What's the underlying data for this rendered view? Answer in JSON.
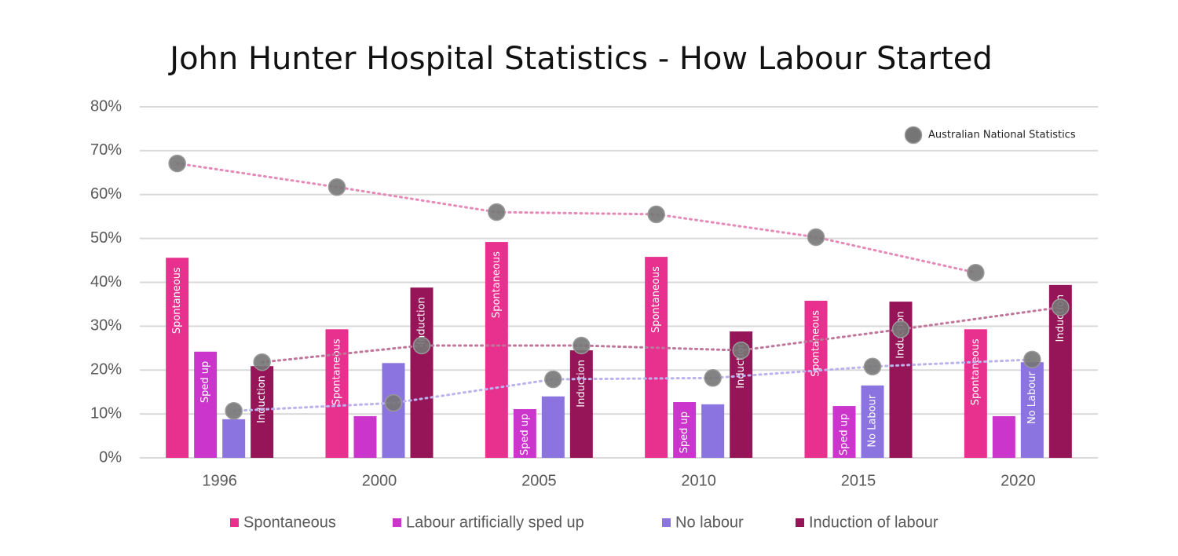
{
  "chart_data": {
    "type": "bar",
    "title": "John Hunter Hospital Statistics  - How Labour Started",
    "categories": [
      "1996",
      "2000",
      "2005",
      "2010",
      "2015",
      "2020"
    ],
    "ylim": [
      0,
      80
    ],
    "yticks": [
      {
        "value": 0,
        "label": "0%"
      },
      {
        "value": 10,
        "label": "10%"
      },
      {
        "value": 20,
        "label": "20%"
      },
      {
        "value": 30,
        "label": "30%"
      },
      {
        "value": 40,
        "label": "40%"
      },
      {
        "value": 50,
        "label": "50%"
      },
      {
        "value": 60,
        "label": "60%"
      },
      {
        "value": 70,
        "label": "70%"
      },
      {
        "value": 80,
        "label": "80%"
      }
    ],
    "grid": true,
    "national_label": "Australian National Statistics",
    "national_color": "#757575",
    "series": [
      {
        "name": "Spontaneous",
        "color": "#e8308f",
        "values": [
          45.6,
          29.3,
          49.2,
          45.8,
          35.8,
          29.3
        ],
        "bar_labels": [
          "Spontaneous",
          "Spontaneous",
          "Spontaneous",
          "Spontaneous",
          "Spontaneous",
          "Spontaneous"
        ],
        "national_values": [
          67.1,
          61.7,
          56.0,
          55.5,
          50.3,
          42.2
        ],
        "national_line_color": "#e58ab8"
      },
      {
        "name": "Labour artificially sped up",
        "color": "#cc35cc",
        "values": [
          24.2,
          9.5,
          11.1,
          12.7,
          11.8,
          9.5
        ],
        "bar_labels": [
          "Sped up",
          null,
          "Sped up",
          "Sped up",
          "Sped up",
          null
        ]
      },
      {
        "name": "No labour",
        "color": "#8b74e0",
        "values": [
          8.8,
          21.6,
          14.0,
          12.2,
          16.5,
          21.8
        ],
        "bar_labels": [
          null,
          null,
          null,
          null,
          "No Labour",
          "No Labour"
        ],
        "national_values": [
          10.7,
          12.5,
          17.9,
          18.2,
          20.8,
          22.4
        ],
        "national_line_color": "#bcb3ee"
      },
      {
        "name": "Induction of labour",
        "color": "#951558",
        "values": [
          20.9,
          38.8,
          24.5,
          28.8,
          35.6,
          39.4
        ],
        "bar_labels": [
          "Induction",
          "Induction",
          "Induction",
          "Induction",
          "Induction",
          "Induction"
        ],
        "national_values": [
          21.8,
          25.6,
          25.6,
          24.5,
          29.3,
          34.3
        ],
        "national_line_color": "#c0769b"
      }
    ]
  }
}
